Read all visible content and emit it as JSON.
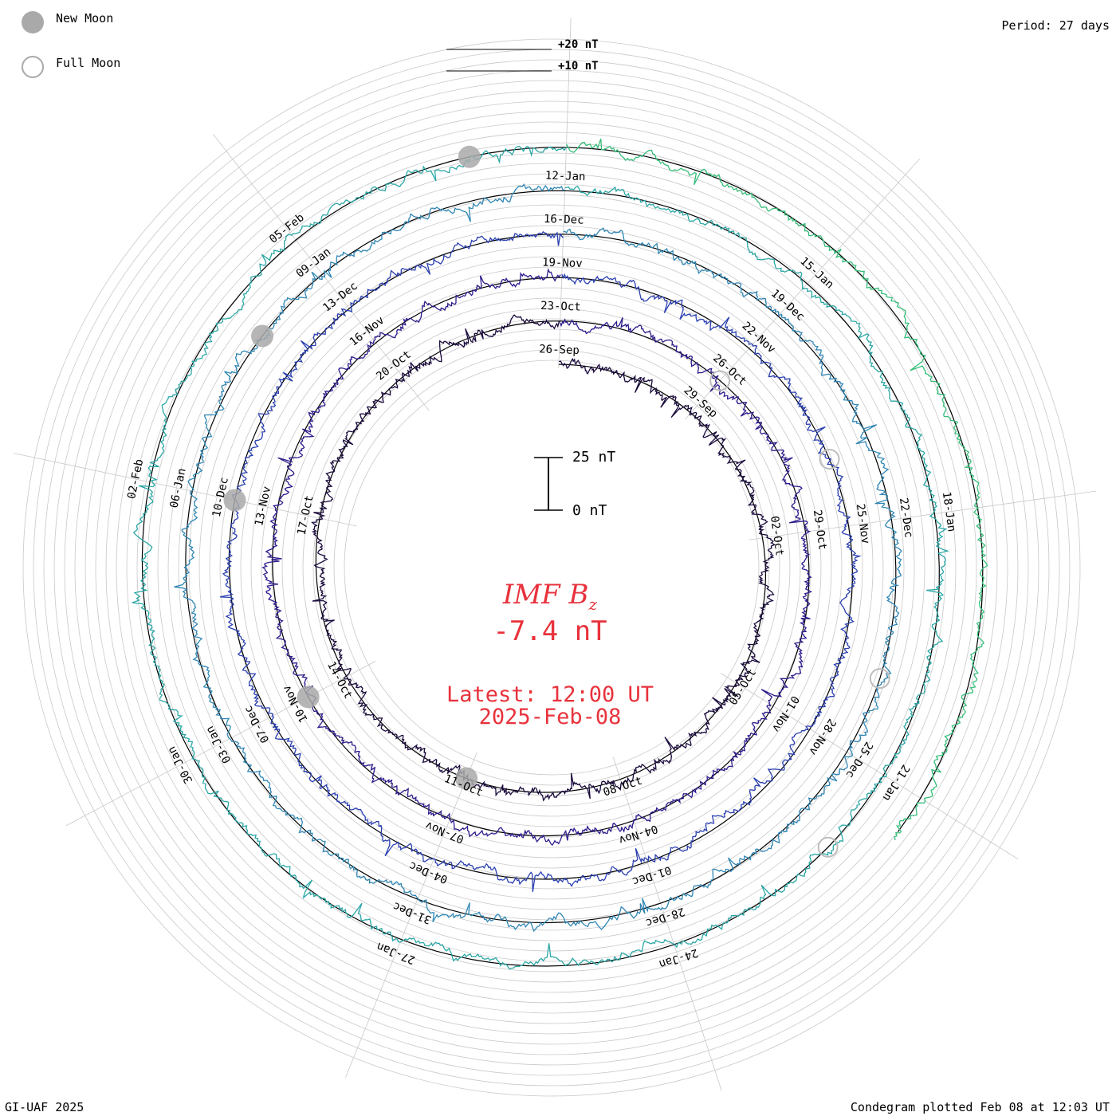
{
  "header": {
    "period_label": "Period: 27 days"
  },
  "legend": {
    "new_moon_label": "New Moon",
    "full_moon_label": "Full Moon",
    "new_moon_color": "#a9a9a9",
    "full_moon_color": "#a9a9a9"
  },
  "amplitude_labels": [
    "+20 nT",
    "+10 nT"
  ],
  "scale_bar": {
    "top_label": "25 nT",
    "bottom_label": "0 nT"
  },
  "center": {
    "quantity_prefix": "IMF B",
    "quantity_subscript": "z",
    "current_value": "-7.4 nT",
    "latest_line1": "Latest: 12:00 UT",
    "latest_line2": "2025-Feb-08",
    "text_color": "#e8323c"
  },
  "footer": {
    "credit": "GI-UAF 2025",
    "plotted": "Condegram plotted Feb 08 at 12:03 UT"
  },
  "chart_data": {
    "type": "line",
    "layout": "spiral condegram",
    "period_days": 27,
    "spiral_start": "2024-09-17",
    "spiral_end": "2025-02-08T12:00",
    "cycle_colors": [
      "#1a0a3c",
      "#2e1a8c",
      "#2a3fb0",
      "#2f86b4",
      "#2aa7a5",
      "#35be7a",
      "#7cc43a",
      "#a8b22a",
      "#c28e1f",
      "#b84a12",
      "#b51414"
    ],
    "date_labels": [
      "26-Sep",
      "23-Oct",
      "19-Nov",
      "16-Dec",
      "12-Jan",
      "29-Sep",
      "26-Oct",
      "22-Nov",
      "19-Dec",
      "15-Jan",
      "02-Oct",
      "29-Oct",
      "25-Nov",
      "22-Dec",
      "18-Jan",
      "05-Oct",
      "01-Nov",
      "28-Nov",
      "25-Dec",
      "21-Jan",
      "08-Oct",
      "04-Nov",
      "01-Dec",
      "28-Dec",
      "24-Jan",
      "11-Oct",
      "07-Nov",
      "04-Dec",
      "31-Dec",
      "27-Jan",
      "14-Oct",
      "10-Nov",
      "07-Dec",
      "03-Jan",
      "30-Jan",
      "17-Oct",
      "13-Nov",
      "10-Dec",
      "06-Jan",
      "02-Feb",
      "20-Oct",
      "16-Nov",
      "13-Dec",
      "09-Jan",
      "05-Feb"
    ],
    "new_moons": [
      "2024-10-02",
      "2024-11-01",
      "2024-12-01",
      "2024-12-30",
      "2025-01-29"
    ],
    "full_moons": [
      "2024-10-17",
      "2024-11-15",
      "2024-12-15",
      "2025-01-13"
    ],
    "units": "nT"
  }
}
